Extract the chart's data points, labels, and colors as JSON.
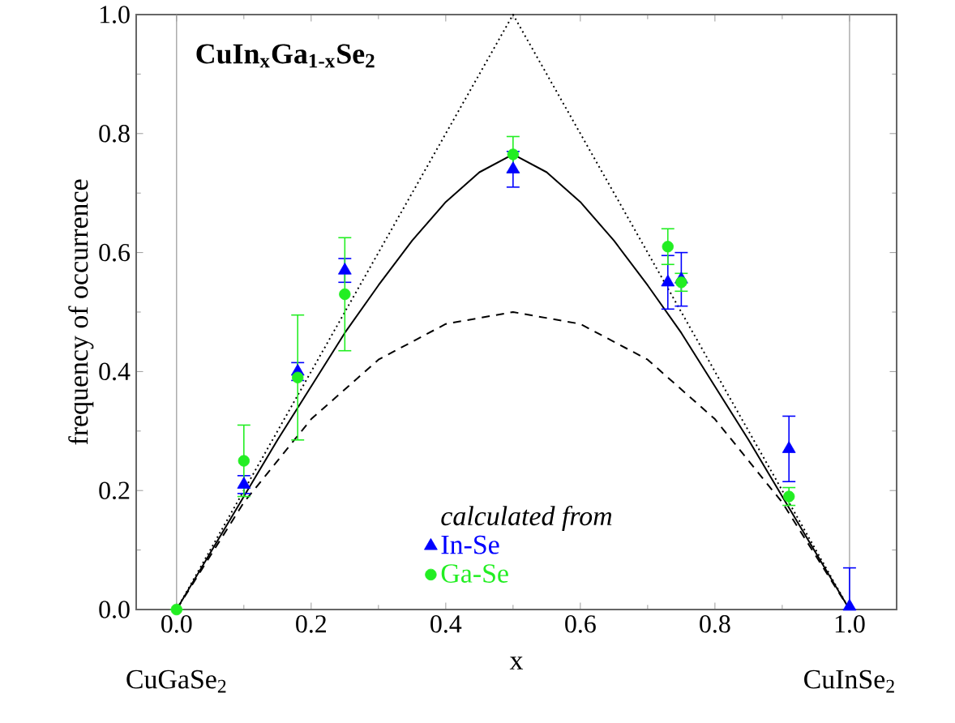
{
  "chart_data": {
    "type": "scatter",
    "title": "CuIn$_{x}$Ga$_{1-x}$Se$_{2}$",
    "xlabel": "x",
    "ylabel": "frequency of occurrence",
    "legend_title": "calculated from",
    "annotations": [
      {
        "text": "CuGaSe$_{2}$",
        "x": 0,
        "y": 0
      },
      {
        "text": "CuInSe$_{2}$",
        "x": 1,
        "y": 0
      }
    ],
    "xlim": [
      -0.06,
      1.07
    ],
    "ylim": [
      0,
      1
    ],
    "xticks": [
      {
        "value": 0,
        "label": "0.0"
      },
      {
        "value": 0.2,
        "label": "0.2"
      },
      {
        "value": 0.4,
        "label": "0.4"
      },
      {
        "value": 0.6,
        "label": "0.6"
      },
      {
        "value": 0.8,
        "label": "0.8"
      },
      {
        "value": 1,
        "label": "1.0"
      }
    ],
    "yticks": [
      {
        "value": 0,
        "label": "0.0"
      },
      {
        "value": 0.2,
        "label": "0.2"
      },
      {
        "value": 0.4,
        "label": "0.4"
      },
      {
        "value": 0.6,
        "label": "0.6"
      },
      {
        "value": 0.8,
        "label": "0.8"
      },
      {
        "value": 1,
        "label": "1.0"
      }
    ],
    "ref_lines": [
      {
        "axis": "x",
        "value": 0,
        "color": "#999999"
      },
      {
        "axis": "x",
        "value": 1,
        "color": "#999999"
      }
    ],
    "legend": "bottom",
    "grid": false,
    "series": [
      {
        "type": "line",
        "color": "#000000",
        "line_style": "dotted",
        "marker": "none",
        "x": [
          0,
          0.5,
          1
        ],
        "values": [
          0,
          1,
          0
        ]
      },
      {
        "type": "line",
        "color": "#000000",
        "line_style": "dashed",
        "marker": "none",
        "x": [
          0,
          0.1,
          0.2,
          0.3,
          0.4,
          0.5,
          0.6,
          0.7,
          0.8,
          0.9,
          1
        ],
        "values": [
          0,
          0.18,
          0.32,
          0.42,
          0.48,
          0.5,
          0.48,
          0.42,
          0.32,
          0.18,
          0
        ]
      },
      {
        "type": "line",
        "color": "#000000",
        "line_style": "solid",
        "marker": "none",
        "x": [
          0,
          0.05,
          0.1,
          0.15,
          0.2,
          0.25,
          0.3,
          0.35,
          0.4,
          0.45,
          0.5,
          0.55,
          0.6,
          0.65,
          0.7,
          0.75,
          0.8,
          0.85,
          0.9,
          0.95,
          1
        ],
        "values": [
          0,
          0.095,
          0.19,
          0.285,
          0.375,
          0.465,
          0.545,
          0.62,
          0.685,
          0.735,
          0.765,
          0.735,
          0.685,
          0.62,
          0.545,
          0.465,
          0.375,
          0.285,
          0.19,
          0.095,
          0
        ]
      },
      {
        "name": "In-Se",
        "color": "#0000ff",
        "marker": "triangle",
        "x": [
          0.1,
          0.18,
          0.25,
          0.5,
          0.73,
          0.75,
          0.91,
          1.0
        ],
        "values": [
          0.21,
          0.4,
          0.57,
          0.74,
          0.55,
          0.555,
          0.27,
          0.005
        ],
        "errors": [
          0.015,
          0.015,
          0.02,
          0.03,
          0.045,
          0.045,
          0.055,
          [
            0,
            0.07
          ]
        ]
      },
      {
        "name": "Ga-Se",
        "color": "#22ee22",
        "marker": "circle",
        "x": [
          0,
          0.1,
          0.18,
          0.25,
          0.5,
          0.73,
          0.75,
          0.91
        ],
        "values": [
          0,
          0.25,
          0.39,
          0.53,
          0.765,
          0.61,
          0.55,
          0.19
        ],
        "errors": [
          null,
          0.06,
          0.105,
          0.095,
          0.03,
          0.03,
          0.015,
          0.015
        ]
      }
    ]
  }
}
